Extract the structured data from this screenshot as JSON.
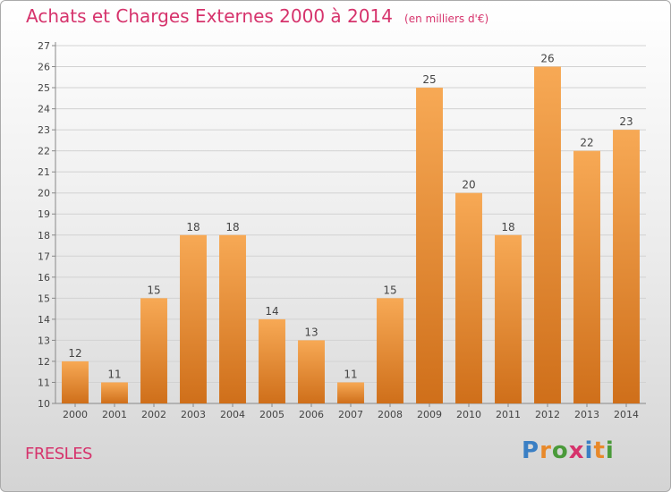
{
  "header": {
    "title": "Achats et Charges Externes 2000 à 2014",
    "subtitle": "(en milliers d'€)"
  },
  "footer": {
    "commune": "FRESLES",
    "brand": "Proxiti"
  },
  "colors": {
    "title": "#d6336c",
    "bar_light": "#f7a955",
    "bar_dark": "#cf6f1a",
    "brand_letters": [
      "#3a7fc4",
      "#e8892a",
      "#4a9a3a",
      "#d6336c",
      "#3a7fc4",
      "#e8892a",
      "#4a9a3a"
    ]
  },
  "chart_data": {
    "type": "bar",
    "title": "Achats et Charges Externes 2000 à 2014",
    "subtitle": "(en milliers d'€)",
    "categories": [
      "2000",
      "2001",
      "2002",
      "2003",
      "2004",
      "2005",
      "2006",
      "2007",
      "2008",
      "2009",
      "2010",
      "2011",
      "2012",
      "2013",
      "2014"
    ],
    "values": [
      12,
      11,
      15,
      18,
      18,
      14,
      13,
      11,
      15,
      25,
      20,
      18,
      26,
      22,
      23
    ],
    "ylim": [
      10,
      27
    ],
    "yticks": [
      10,
      11,
      12,
      13,
      14,
      15,
      16,
      17,
      18,
      19,
      20,
      21,
      22,
      23,
      24,
      25,
      26,
      27
    ],
    "grid": true,
    "data_labels": true
  }
}
